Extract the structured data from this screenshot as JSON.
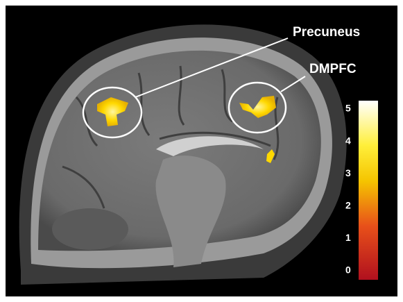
{
  "labels": [
    "Precuneus",
    "DMPFC"
  ],
  "colorbar": {
    "ticks": [
      5,
      4,
      3,
      2,
      1,
      0
    ]
  }
}
